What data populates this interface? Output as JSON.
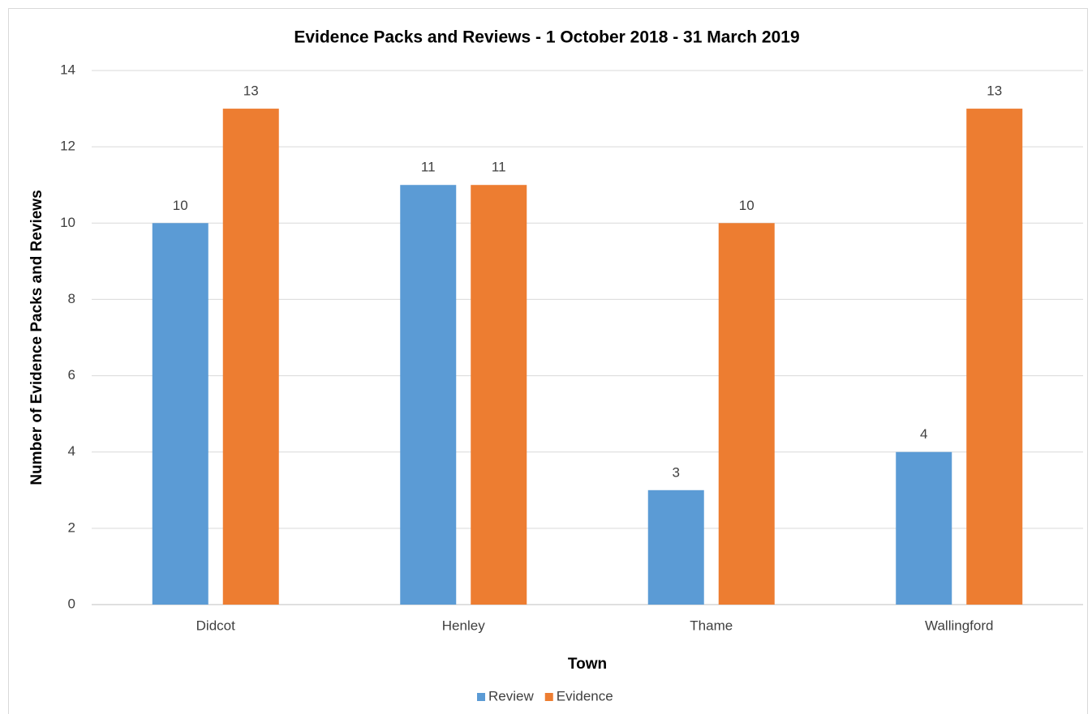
{
  "chart_data": {
    "type": "bar",
    "title": "Evidence Packs and Reviews - 1 October 2018 - 31 March 2019",
    "x_label": "Town",
    "y_label": "Number of Evidence Packs and Reviews",
    "categories": [
      "Didcot",
      "Henley",
      "Thame",
      "Wallingford"
    ],
    "series": [
      {
        "name": "Review",
        "color": "#5b9bd5",
        "values": [
          10,
          11,
          3,
          4
        ]
      },
      {
        "name": "Evidence",
        "color": "#ed7d31",
        "values": [
          13,
          11,
          10,
          13
        ]
      }
    ],
    "ylim": [
      0,
      14
    ],
    "yticks": [
      0,
      2,
      4,
      6,
      8,
      10,
      12,
      14
    ],
    "grid": true,
    "legend": "bottom"
  }
}
